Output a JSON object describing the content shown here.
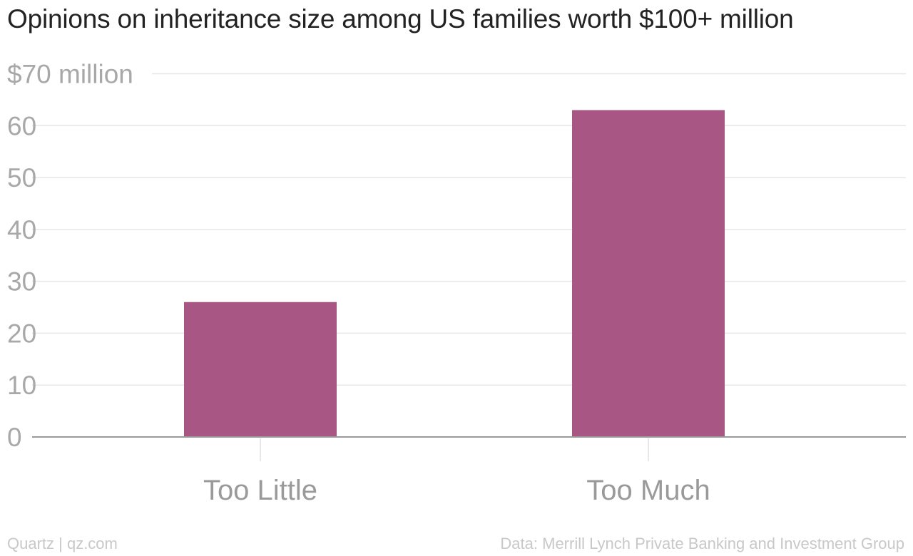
{
  "chart_data": {
    "type": "bar",
    "title": "Opinions on inheritance size among US families worth $100+ million",
    "categories": [
      "Too Little",
      "Too Much"
    ],
    "values": [
      26,
      63
    ],
    "unit_label": "$70 million",
    "yticks": [
      0,
      10,
      20,
      30,
      40,
      50,
      60,
      70
    ],
    "ytick_labels": [
      "0",
      "10",
      "20",
      "30",
      "40",
      "50",
      "60",
      "$70 million"
    ],
    "ylim": [
      0,
      70
    ],
    "xlabel": "",
    "ylabel": "",
    "grid": true,
    "bar_color": "#a85785"
  },
  "footer": {
    "source_left": "Quartz | qz.com",
    "source_right": "Data: Merrill Lynch Private Banking and Investment Group"
  }
}
